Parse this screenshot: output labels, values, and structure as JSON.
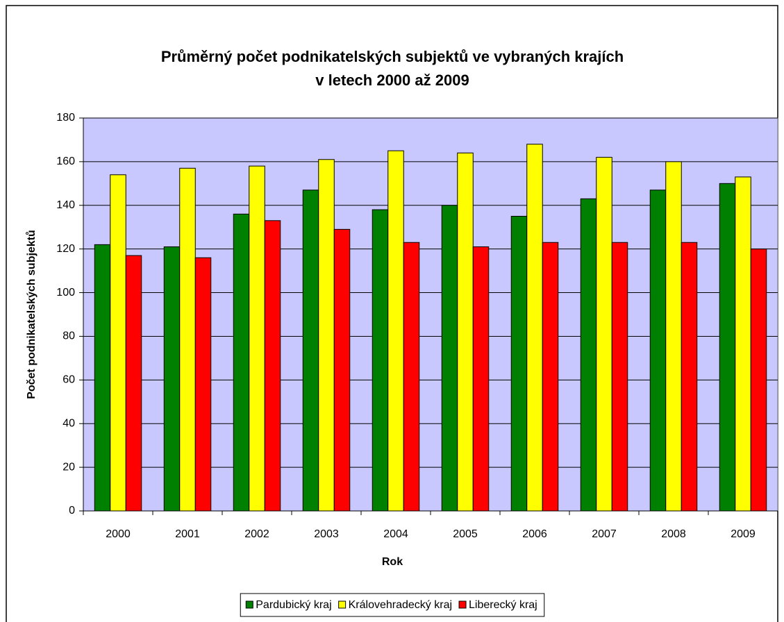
{
  "chart_data": {
    "type": "bar",
    "title": [
      "Průměrný počet podnikatelských subjektů ve vybraných krajích",
      "v letech 2000 až 2009"
    ],
    "x_label": "Rok",
    "y_label": "Počet podnikatelských subjektů",
    "categories": [
      "2000",
      "2001",
      "2002",
      "2003",
      "2004",
      "2005",
      "2006",
      "2007",
      "2008",
      "2009"
    ],
    "series": [
      {
        "name": "Pardubický kraj",
        "color": "#008000",
        "values": [
          122,
          121,
          136,
          147,
          138,
          140,
          135,
          143,
          147,
          150
        ]
      },
      {
        "name": "Královehradecký kraj",
        "color": "#ffff00",
        "values": [
          154,
          157,
          158,
          161,
          165,
          164,
          168,
          162,
          160,
          153
        ]
      },
      {
        "name": "Liberecký kraj",
        "color": "#ff0000",
        "values": [
          117,
          116,
          133,
          129,
          123,
          121,
          123,
          123,
          123,
          120
        ]
      }
    ],
    "ylim": [
      0,
      180
    ],
    "yticks": [
      0,
      20,
      40,
      60,
      80,
      100,
      120,
      140,
      160,
      180
    ],
    "grid": true,
    "plot_background": "#c8c8ff",
    "legend": "bottom"
  }
}
